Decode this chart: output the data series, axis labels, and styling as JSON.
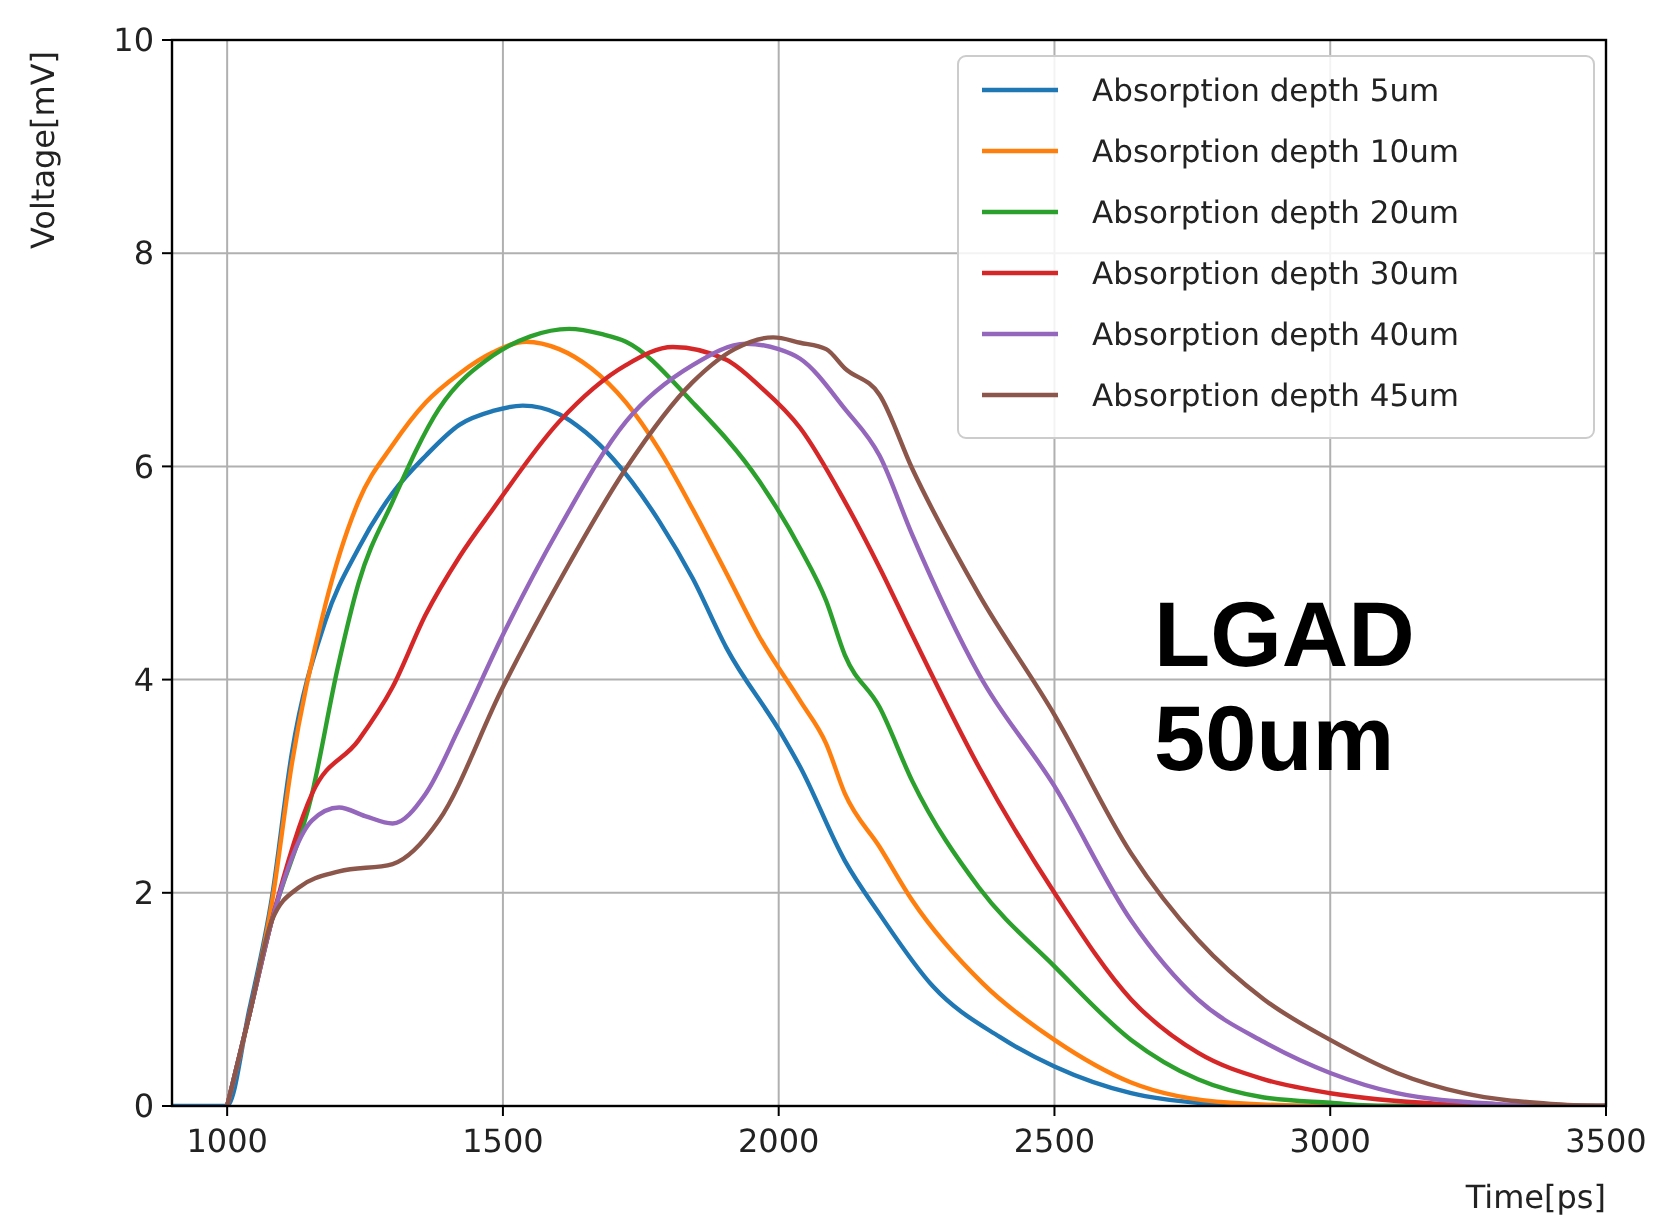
{
  "chart_data": {
    "type": "line",
    "xlabel": "Time[ps]",
    "ylabel": "Voltage[mV]",
    "xlim": [
      900,
      3500
    ],
    "xticks": [
      1000,
      1500,
      2000,
      2500,
      3000,
      3500
    ],
    "ylim": [
      0,
      10
    ],
    "yticks": [
      0,
      2,
      4,
      6,
      8,
      10
    ],
    "grid": true,
    "legend": "top right",
    "line_style": "solid",
    "marker": "none",
    "annotations": [
      "LGAD\n50um"
    ],
    "series": [
      {
        "name": "Absorption depth 5um",
        "color": "#1f77b4",
        "x": [
          900,
          1000,
          1040,
          1081,
          1117,
          1178,
          1238,
          1300,
          1360,
          1421,
          1482,
          1536,
          1602,
          1650,
          1700,
          1784,
          1844,
          1905,
          2005,
          2039,
          2120,
          2183,
          2280,
          2400,
          2500,
          2639,
          2760,
          2900,
          3500
        ],
        "values": [
          0,
          0,
          0.9,
          1.95,
          3.3,
          4.55,
          5.23,
          5.75,
          6.1,
          6.39,
          6.52,
          6.57,
          6.49,
          6.32,
          6.07,
          5.48,
          4.95,
          4.3,
          3.49,
          3.18,
          2.3,
          1.8,
          1.12,
          0.65,
          0.37,
          0.12,
          0.03,
          0,
          0
        ]
      },
      {
        "name": "Absorption depth 10um",
        "color": "#ff7f0e",
        "x": [
          1000,
          1040,
          1081,
          1117,
          1178,
          1238,
          1300,
          1360,
          1421,
          1482,
          1542,
          1602,
          1660,
          1723,
          1784,
          1844,
          1905,
          1965,
          2039,
          2086,
          2120,
          2183,
          2242,
          2370,
          2500,
          2639,
          2820,
          3000,
          3500
        ],
        "values": [
          0,
          0.85,
          1.9,
          3.2,
          4.7,
          5.67,
          6.2,
          6.6,
          6.87,
          7.07,
          7.17,
          7.1,
          6.92,
          6.6,
          6.15,
          5.6,
          5.0,
          4.4,
          3.8,
          3.4,
          2.93,
          2.43,
          1.93,
          1.15,
          0.62,
          0.22,
          0.03,
          0,
          0
        ]
      },
      {
        "name": "Absorption depth 20um",
        "color": "#2ca02c",
        "x": [
          1000,
          1040,
          1081,
          1154,
          1200,
          1238,
          1300,
          1384,
          1482,
          1550,
          1620,
          1680,
          1723,
          1844,
          1965,
          2039,
          2086,
          2120,
          2183,
          2242,
          2363,
          2500,
          2639,
          2760,
          2880,
          3000,
          3100,
          3500
        ],
        "values": [
          0,
          0.85,
          1.74,
          2.93,
          4.1,
          4.9,
          5.67,
          6.54,
          7.04,
          7.22,
          7.29,
          7.24,
          7.17,
          6.6,
          5.86,
          5.23,
          4.74,
          4.23,
          3.74,
          3.05,
          2.05,
          1.31,
          0.62,
          0.25,
          0.08,
          0.03,
          0,
          0
        ]
      },
      {
        "name": "Absorption depth 30um",
        "color": "#d62728",
        "x": [
          1000,
          1040,
          1081,
          1154,
          1238,
          1300,
          1360,
          1421,
          1482,
          1602,
          1723,
          1808,
          1905,
          1966,
          2039,
          2120,
          2183,
          2242,
          2363,
          2500,
          2639,
          2760,
          2880,
          3000,
          3200,
          3300,
          3500
        ],
        "values": [
          0,
          0.85,
          1.74,
          2.93,
          3.43,
          3.93,
          4.61,
          5.15,
          5.6,
          6.42,
          6.95,
          7.12,
          7.0,
          6.75,
          6.36,
          5.67,
          5.05,
          4.42,
          3.18,
          2.0,
          1.0,
          0.5,
          0.25,
          0.12,
          0.02,
          0,
          0
        ]
      },
      {
        "name": "Absorption depth 40um",
        "color": "#9467bd",
        "x": [
          1000,
          1040,
          1081,
          1154,
          1203,
          1250,
          1300,
          1360,
          1421,
          1500,
          1602,
          1723,
          1844,
          1941,
          2000,
          2039,
          2120,
          2183,
          2242,
          2363,
          2500,
          2639,
          2760,
          2880,
          3000,
          3121,
          3300,
          3400,
          3500
        ],
        "values": [
          0,
          0.85,
          1.74,
          2.68,
          2.8,
          2.72,
          2.65,
          2.93,
          3.55,
          4.42,
          5.42,
          6.42,
          6.95,
          7.15,
          7.1,
          7.01,
          6.54,
          6.1,
          5.36,
          4.05,
          3.0,
          1.74,
          1.0,
          0.6,
          0.31,
          0.12,
          0.02,
          0,
          0
        ]
      },
      {
        "name": "Absorption depth 45um",
        "color": "#8c564b",
        "x": [
          1000,
          1040,
          1081,
          1130,
          1203,
          1300,
          1384,
          1500,
          1602,
          1723,
          1844,
          1920,
          1990,
          2039,
          2086,
          2120,
          2183,
          2242,
          2363,
          2500,
          2639,
          2760,
          2880,
          3000,
          3121,
          3242,
          3400,
          3500
        ],
        "values": [
          0,
          0.85,
          1.74,
          2.05,
          2.2,
          2.27,
          2.68,
          3.93,
          4.92,
          5.98,
          6.79,
          7.1,
          7.21,
          7.16,
          7.1,
          6.92,
          6.67,
          5.98,
          4.8,
          3.67,
          2.37,
          1.56,
          1.0,
          0.62,
          0.31,
          0.12,
          0.02,
          0
        ]
      }
    ]
  }
}
